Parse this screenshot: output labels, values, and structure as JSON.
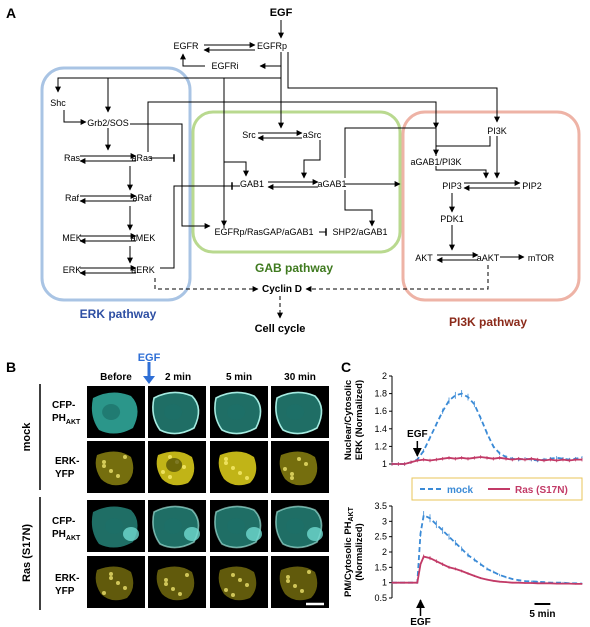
{
  "panels": {
    "a": "A",
    "b": "B",
    "c": "C"
  },
  "diagram": {
    "nodes": {
      "egf": "EGF",
      "egfr": "EGFR",
      "egfrp": "EGFRp",
      "egfri": "EGFRi",
      "shc": "Shc",
      "grb2sos": "Grb2/SOS",
      "ras": "Ras",
      "aras": "aRas",
      "raf": "Raf",
      "araf": "aRaf",
      "mek": "MEK",
      "amek": "aMEK",
      "erk": "ERK",
      "aerk": "aERK",
      "src": "Src",
      "asrc": "aSrc",
      "gab1": "GAB1",
      "agab1": "aGAB1",
      "egfrp_complex": "EGFRp/RasGAP/aGAB1",
      "shp2": "SHP2/aGAB1",
      "pi3k": "PI3K",
      "agab1pi3k": "aGAB1/PI3K",
      "pip3": "PIP3",
      "pip2": "PIP2",
      "pdk1": "PDK1",
      "akt": "AKT",
      "aakt": "aAKT",
      "mtor": "mTOR",
      "cyclind": "Cyclin D",
      "cellcycle": "Cell cycle"
    },
    "modules": {
      "erk": {
        "label": "ERK pathway",
        "color": "#a9c4e4",
        "label_color": "#2e4fa3"
      },
      "gab": {
        "label": "GAB pathway",
        "color": "#b9d98f",
        "label_color": "#3f7a1f"
      },
      "pi3k": {
        "label": "PI3K pathway",
        "color": "#eeb3a6",
        "label_color": "#8b2a1a"
      }
    }
  },
  "imaging": {
    "egf_marker": "EGF",
    "egf_color": "#2f6fd6",
    "columns": [
      "Before",
      "2 min",
      "5 min",
      "30 min"
    ],
    "conditions": [
      {
        "label": "mock",
        "rows": [
          {
            "label": "CFP-",
            "label_main": "PH",
            "label_sub": "AKT",
            "color": "#39c8b8"
          },
          {
            "label": "ERK-",
            "label_main": "YFP",
            "label_sub": "",
            "color": "#d6c81a"
          }
        ]
      },
      {
        "label": "Ras (S17N)",
        "rows": [
          {
            "label": "CFP-",
            "label_main": "PH",
            "label_sub": "AKT",
            "color": "#39c8b8"
          },
          {
            "label": "ERK-",
            "label_main": "YFP",
            "label_sub": "",
            "color": "#d6c81a"
          }
        ]
      }
    ]
  },
  "chart_data": [
    {
      "type": "line",
      "ylabel_line1": "Nuclear/Cytosolic",
      "ylabel_line2": "ERK (Normalized)",
      "ylim": [
        1,
        2
      ],
      "yticks": [
        "1",
        "1.2",
        "1.4",
        "1.6",
        "1.8",
        "2"
      ],
      "annotation": "EGF",
      "series": [
        {
          "name": "mock",
          "color": "#3a8ad6",
          "style": "dashed",
          "x": [
            0,
            2,
            4,
            6,
            8,
            10,
            12,
            14,
            16,
            18,
            20,
            22,
            24,
            26,
            28,
            30,
            32,
            34,
            36,
            38,
            40,
            42,
            44,
            46,
            48,
            50,
            52,
            54,
            56,
            58,
            60
          ],
          "values": [
            1.0,
            1.0,
            1.0,
            1.02,
            1.05,
            1.15,
            1.3,
            1.45,
            1.6,
            1.72,
            1.78,
            1.8,
            1.76,
            1.68,
            1.52,
            1.35,
            1.2,
            1.12,
            1.08,
            1.06,
            1.05,
            1.06,
            1.05,
            1.04,
            1.05,
            1.06,
            1.07,
            1.06,
            1.05,
            1.06,
            1.07
          ]
        },
        {
          "name": "Ras (S17N)",
          "color": "#c23a67",
          "style": "solid",
          "x": [
            0,
            2,
            4,
            6,
            8,
            10,
            12,
            14,
            16,
            18,
            20,
            22,
            24,
            26,
            28,
            30,
            32,
            34,
            36,
            38,
            40,
            42,
            44,
            46,
            48,
            50,
            52,
            54,
            56,
            58,
            60
          ],
          "values": [
            1.0,
            1.0,
            1.0,
            1.02,
            1.04,
            1.05,
            1.04,
            1.05,
            1.06,
            1.07,
            1.06,
            1.07,
            1.06,
            1.07,
            1.08,
            1.07,
            1.06,
            1.07,
            1.06,
            1.05,
            1.06,
            1.05,
            1.06,
            1.05,
            1.04,
            1.05,
            1.04,
            1.05,
            1.04,
            1.05,
            1.05
          ]
        }
      ]
    },
    {
      "type": "line",
      "ylabel_line1": "PM/Cytosolic PH",
      "ylabel_sub": "AKT",
      "ylabel_line2": "(Normalized)",
      "ylim": [
        0.5,
        3.5
      ],
      "yticks": [
        "0.5",
        "1",
        "1.5",
        "2",
        "2.5",
        "3",
        "3.5"
      ],
      "annotation": "EGF",
      "scalebar": "5 min",
      "series": [
        {
          "name": "mock",
          "color": "#3a8ad6",
          "style": "dashed",
          "x": [
            0,
            2,
            4,
            6,
            8,
            9,
            10,
            12,
            14,
            16,
            18,
            20,
            22,
            24,
            26,
            28,
            30,
            32,
            34,
            36,
            38,
            40,
            42,
            44,
            46,
            48,
            50,
            52,
            54,
            56,
            58,
            60
          ],
          "values": [
            1.0,
            1.0,
            1.0,
            1.0,
            1.0,
            2.6,
            3.2,
            3.1,
            2.9,
            2.7,
            2.5,
            2.3,
            2.1,
            1.9,
            1.75,
            1.6,
            1.45,
            1.35,
            1.25,
            1.18,
            1.12,
            1.08,
            1.05,
            1.04,
            1.03,
            1.02,
            1.0,
            1.0,
            1.0,
            0.98,
            0.98,
            0.97
          ]
        },
        {
          "name": "Ras (S17N)",
          "color": "#c23a67",
          "style": "solid",
          "x": [
            0,
            2,
            4,
            6,
            8,
            9,
            10,
            12,
            14,
            16,
            18,
            20,
            22,
            24,
            26,
            28,
            30,
            32,
            34,
            36,
            38,
            40,
            42,
            44,
            46,
            48,
            50,
            52,
            54,
            56,
            58,
            60
          ],
          "values": [
            1.0,
            1.0,
            1.0,
            1.0,
            1.0,
            1.6,
            1.85,
            1.8,
            1.7,
            1.6,
            1.5,
            1.45,
            1.38,
            1.3,
            1.22,
            1.15,
            1.1,
            1.06,
            1.03,
            1.02,
            1.0,
            1.0,
            0.99,
            0.99,
            0.98,
            0.98,
            0.98,
            0.97,
            0.97,
            0.97,
            0.96,
            0.96
          ]
        }
      ]
    }
  ]
}
